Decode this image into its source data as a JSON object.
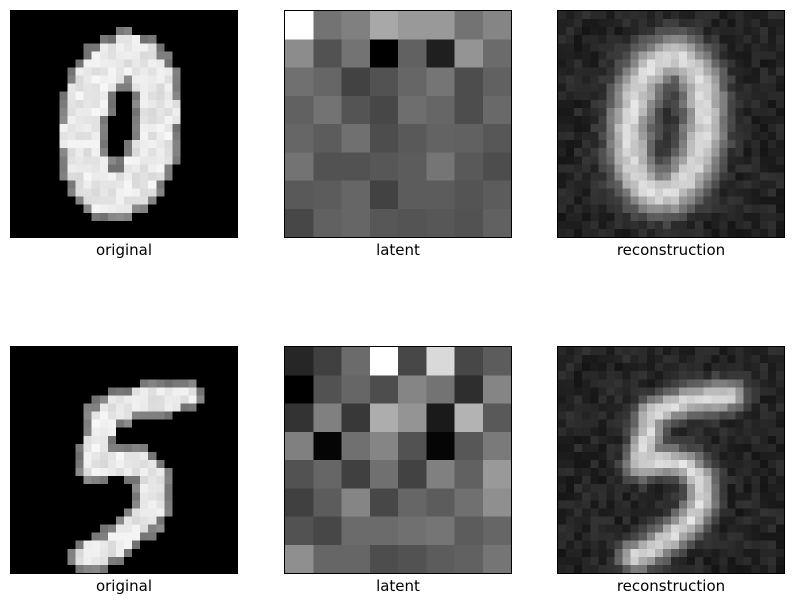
{
  "rows": [
    {
      "panels": [
        {
          "caption": "original",
          "kind": "digit",
          "digit": "0"
        },
        {
          "caption": "latent",
          "kind": "latent",
          "grid": [
            [
              1.0,
              0.45,
              0.5,
              0.66,
              0.6,
              0.6,
              0.45,
              0.52
            ],
            [
              0.55,
              0.32,
              0.45,
              0.0,
              0.38,
              0.12,
              0.58,
              0.42
            ],
            [
              0.44,
              0.4,
              0.26,
              0.32,
              0.4,
              0.46,
              0.3,
              0.38
            ],
            [
              0.38,
              0.45,
              0.33,
              0.28,
              0.43,
              0.4,
              0.3,
              0.41
            ],
            [
              0.4,
              0.36,
              0.44,
              0.3,
              0.35,
              0.39,
              0.38,
              0.34
            ],
            [
              0.45,
              0.32,
              0.32,
              0.34,
              0.36,
              0.46,
              0.35,
              0.3
            ],
            [
              0.35,
              0.36,
              0.4,
              0.26,
              0.36,
              0.36,
              0.33,
              0.36
            ],
            [
              0.28,
              0.38,
              0.4,
              0.34,
              0.33,
              0.34,
              0.32,
              0.38
            ]
          ]
        },
        {
          "caption": "reconstruction",
          "kind": "recon",
          "digit": "0"
        }
      ]
    },
    {
      "panels": [
        {
          "caption": "original",
          "kind": "digit",
          "digit": "5"
        },
        {
          "caption": "latent",
          "kind": "latent",
          "grid": [
            [
              0.15,
              0.25,
              0.42,
              1.0,
              0.28,
              0.85,
              0.28,
              0.36
            ],
            [
              0.0,
              0.32,
              0.4,
              0.3,
              0.52,
              0.45,
              0.18,
              0.52
            ],
            [
              0.2,
              0.5,
              0.22,
              0.68,
              0.58,
              0.1,
              0.7,
              0.35
            ],
            [
              0.5,
              0.02,
              0.44,
              0.52,
              0.32,
              0.02,
              0.34,
              0.48
            ],
            [
              0.32,
              0.4,
              0.25,
              0.44,
              0.26,
              0.5,
              0.38,
              0.6
            ],
            [
              0.25,
              0.36,
              0.52,
              0.28,
              0.4,
              0.36,
              0.44,
              0.56
            ],
            [
              0.32,
              0.28,
              0.42,
              0.42,
              0.44,
              0.46,
              0.36,
              0.4
            ],
            [
              0.56,
              0.4,
              0.4,
              0.3,
              0.32,
              0.36,
              0.38,
              0.46
            ]
          ]
        },
        {
          "caption": "reconstruction",
          "kind": "recon",
          "digit": "5"
        }
      ]
    }
  ]
}
